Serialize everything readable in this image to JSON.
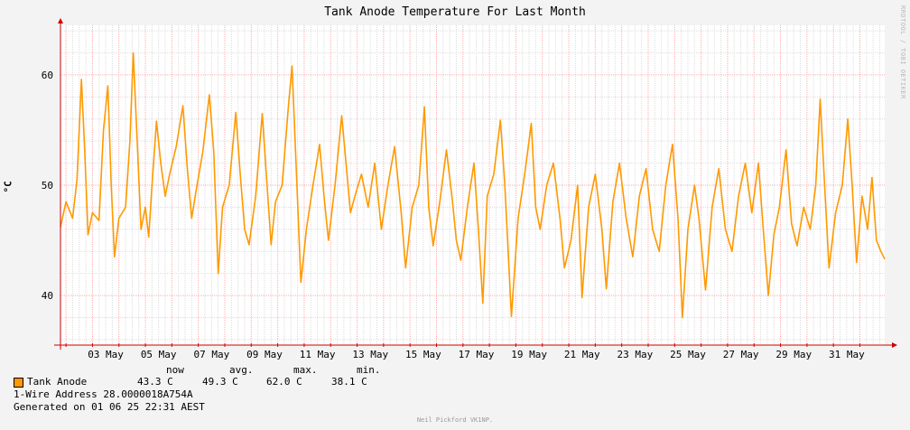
{
  "chart_data": {
    "type": "line",
    "title": "Tank Anode Temperature For Last Month",
    "ylabel": "°C",
    "ylim": [
      35.5,
      64.5
    ],
    "yticks": [
      40,
      50,
      60
    ],
    "xlim": [
      "2025-05-01 19:00",
      "2025-06-01 22:31"
    ],
    "xticks": [
      "03 May",
      "05 May",
      "07 May",
      "09 May",
      "11 May",
      "13 May",
      "15 May",
      "17 May",
      "19 May",
      "21 May",
      "23 May",
      "25 May",
      "27 May",
      "29 May",
      "31 May"
    ],
    "grid": true,
    "legend_position": "bottom-left",
    "series": [
      {
        "name": "Tank Anode",
        "color": "#ff9900",
        "points": [
          [
            "2025-05-01 19:00",
            46.2
          ],
          [
            "2025-05-02 00:00",
            48.5
          ],
          [
            "2025-05-02 06:00",
            47.0
          ],
          [
            "2025-05-02 10:00",
            50.5
          ],
          [
            "2025-05-02 14:00",
            59.6
          ],
          [
            "2025-05-02 17:00",
            53.0
          ],
          [
            "2025-05-02 20:00",
            45.5
          ],
          [
            "2025-05-03 00:00",
            47.5
          ],
          [
            "2025-05-03 06:00",
            46.8
          ],
          [
            "2025-05-03 10:00",
            55.0
          ],
          [
            "2025-05-03 14:00",
            59.0
          ],
          [
            "2025-05-03 17:00",
            50.0
          ],
          [
            "2025-05-03 20:00",
            43.5
          ],
          [
            "2025-05-04 00:00",
            47.0
          ],
          [
            "2025-05-04 06:00",
            48.0
          ],
          [
            "2025-05-04 10:00",
            54.0
          ],
          [
            "2025-05-04 13:00",
            62.0
          ],
          [
            "2025-05-04 17:00",
            53.0
          ],
          [
            "2025-05-04 20:00",
            46.0
          ],
          [
            "2025-05-05 00:00",
            48.0
          ],
          [
            "2025-05-05 03:00",
            45.3
          ],
          [
            "2025-05-05 06:00",
            50.0
          ],
          [
            "2025-05-05 10:00",
            55.8
          ],
          [
            "2025-05-05 14:00",
            52.0
          ],
          [
            "2025-05-05 18:00",
            49.0
          ],
          [
            "2025-05-05 22:00",
            51.0
          ],
          [
            "2025-05-06 04:00",
            53.5
          ],
          [
            "2025-05-06 10:00",
            57.2
          ],
          [
            "2025-05-06 14:00",
            51.5
          ],
          [
            "2025-05-06 18:00",
            47.0
          ],
          [
            "2025-05-06 22:00",
            49.5
          ],
          [
            "2025-05-07 04:00",
            53.0
          ],
          [
            "2025-05-07 10:00",
            58.2
          ],
          [
            "2025-05-07 14:00",
            53.0
          ],
          [
            "2025-05-07 18:00",
            42.0
          ],
          [
            "2025-05-07 22:00",
            48.0
          ],
          [
            "2025-05-08 04:00",
            50.0
          ],
          [
            "2025-05-08 10:00",
            56.6
          ],
          [
            "2025-05-08 14:00",
            51.0
          ],
          [
            "2025-05-08 18:00",
            46.0
          ],
          [
            "2025-05-08 22:00",
            44.6
          ],
          [
            "2025-05-09 04:00",
            49.0
          ],
          [
            "2025-05-09 10:00",
            56.5
          ],
          [
            "2025-05-09 14:00",
            50.5
          ],
          [
            "2025-05-09 18:00",
            44.6
          ],
          [
            "2025-05-09 22:00",
            48.5
          ],
          [
            "2025-05-10 04:00",
            50.0
          ],
          [
            "2025-05-10 10:00",
            57.5
          ],
          [
            "2025-05-10 13:00",
            60.8
          ],
          [
            "2025-05-10 17:00",
            51.0
          ],
          [
            "2025-05-10 21:00",
            41.2
          ],
          [
            "2025-05-11 02:00",
            46.0
          ],
          [
            "2025-05-11 08:00",
            50.0
          ],
          [
            "2025-05-11 14:00",
            53.7
          ],
          [
            "2025-05-11 18:00",
            49.0
          ],
          [
            "2025-05-11 22:00",
            45.0
          ],
          [
            "2025-05-12 04:00",
            50.0
          ],
          [
            "2025-05-12 10:00",
            56.3
          ],
          [
            "2025-05-12 14:00",
            52.0
          ],
          [
            "2025-05-12 18:00",
            47.5
          ],
          [
            "2025-05-12 22:00",
            49.0
          ],
          [
            "2025-05-13 04:00",
            51.0
          ],
          [
            "2025-05-13 10:00",
            48.0
          ],
          [
            "2025-05-13 16:00",
            52.0
          ],
          [
            "2025-05-13 22:00",
            46.0
          ],
          [
            "2025-05-14 04:00",
            50.0
          ],
          [
            "2025-05-14 10:00",
            53.5
          ],
          [
            "2025-05-14 16:00",
            47.5
          ],
          [
            "2025-05-14 20:00",
            42.5
          ],
          [
            "2025-05-15 02:00",
            48.0
          ],
          [
            "2025-05-15 08:00",
            50.0
          ],
          [
            "2025-05-15 13:00",
            57.1
          ],
          [
            "2025-05-15 17:00",
            48.0
          ],
          [
            "2025-05-15 21:00",
            44.5
          ],
          [
            "2025-05-16 03:00",
            48.5
          ],
          [
            "2025-05-16 09:00",
            53.2
          ],
          [
            "2025-05-16 14:00",
            49.0
          ],
          [
            "2025-05-16 18:00",
            45.0
          ],
          [
            "2025-05-16 22:00",
            43.2
          ],
          [
            "2025-05-17 04:00",
            48.0
          ],
          [
            "2025-05-17 10:00",
            52.0
          ],
          [
            "2025-05-17 14:00",
            46.0
          ],
          [
            "2025-05-17 18:00",
            39.3
          ],
          [
            "2025-05-17 22:00",
            49.0
          ],
          [
            "2025-05-18 04:00",
            51.0
          ],
          [
            "2025-05-18 10:00",
            55.9
          ],
          [
            "2025-05-18 14:00",
            50.0
          ],
          [
            "2025-05-18 20:00",
            38.1
          ],
          [
            "2025-05-19 02:00",
            47.0
          ],
          [
            "2025-05-19 08:00",
            51.0
          ],
          [
            "2025-05-19 14:00",
            55.6
          ],
          [
            "2025-05-19 18:00",
            48.0
          ],
          [
            "2025-05-19 22:00",
            46.0
          ],
          [
            "2025-05-20 04:00",
            50.0
          ],
          [
            "2025-05-20 10:00",
            52.0
          ],
          [
            "2025-05-20 16:00",
            47.0
          ],
          [
            "2025-05-20 20:00",
            42.5
          ],
          [
            "2025-05-21 02:00",
            45.0
          ],
          [
            "2025-05-21 08:00",
            50.0
          ],
          [
            "2025-05-21 12:00",
            39.8
          ],
          [
            "2025-05-21 18:00",
            48.0
          ],
          [
            "2025-05-22 00:00",
            51.0
          ],
          [
            "2025-05-22 06:00",
            46.0
          ],
          [
            "2025-05-22 10:00",
            40.6
          ],
          [
            "2025-05-22 16:00",
            48.5
          ],
          [
            "2025-05-22 22:00",
            52.0
          ],
          [
            "2025-05-23 04:00",
            47.0
          ],
          [
            "2025-05-23 10:00",
            43.5
          ],
          [
            "2025-05-23 16:00",
            49.0
          ],
          [
            "2025-05-23 22:00",
            51.5
          ],
          [
            "2025-05-24 04:00",
            46.0
          ],
          [
            "2025-05-24 10:00",
            44.0
          ],
          [
            "2025-05-24 16:00",
            50.0
          ],
          [
            "2025-05-24 22:00",
            53.7
          ],
          [
            "2025-05-25 03:00",
            47.0
          ],
          [
            "2025-05-25 07:00",
            38.0
          ],
          [
            "2025-05-25 12:00",
            46.0
          ],
          [
            "2025-05-25 18:00",
            50.0
          ],
          [
            "2025-05-25 22:00",
            47.0
          ],
          [
            "2025-05-26 04:00",
            40.5
          ],
          [
            "2025-05-26 10:00",
            48.0
          ],
          [
            "2025-05-26 16:00",
            51.5
          ],
          [
            "2025-05-26 22:00",
            46.0
          ],
          [
            "2025-05-27 04:00",
            44.0
          ],
          [
            "2025-05-27 10:00",
            49.0
          ],
          [
            "2025-05-27 16:00",
            52.0
          ],
          [
            "2025-05-27 22:00",
            47.5
          ],
          [
            "2025-05-28 04:00",
            52.0
          ],
          [
            "2025-05-28 08:00",
            46.5
          ],
          [
            "2025-05-28 13:00",
            40.0
          ],
          [
            "2025-05-28 18:00",
            45.5
          ],
          [
            "2025-05-28 23:00",
            48.0
          ],
          [
            "2025-05-29 05:00",
            53.2
          ],
          [
            "2025-05-29 10:00",
            46.5
          ],
          [
            "2025-05-29 15:00",
            44.5
          ],
          [
            "2025-05-29 21:00",
            48.0
          ],
          [
            "2025-05-30 03:00",
            46.0
          ],
          [
            "2025-05-30 08:00",
            50.0
          ],
          [
            "2025-05-30 12:00",
            57.8
          ],
          [
            "2025-05-30 16:00",
            50.0
          ],
          [
            "2025-05-30 20:00",
            42.5
          ],
          [
            "2025-05-31 02:00",
            47.5
          ],
          [
            "2025-05-31 08:00",
            50.0
          ],
          [
            "2025-05-31 13:00",
            56.0
          ],
          [
            "2025-05-31 17:00",
            50.0
          ],
          [
            "2025-05-31 21:00",
            43.0
          ],
          [
            "2025-06-01 02:00",
            49.0
          ],
          [
            "2025-06-01 07:00",
            46.0
          ],
          [
            "2025-06-01 11:00",
            50.7
          ],
          [
            "2025-06-01 15:00",
            45.0
          ],
          [
            "2025-06-01 19:00",
            44.0
          ],
          [
            "2025-06-01 22:31",
            43.3
          ]
        ]
      }
    ]
  },
  "legend": {
    "headers": {
      "now": "now",
      "avg": "avg.",
      "max": "max.",
      "min": "min."
    },
    "series_label": "Tank Anode",
    "now": "43.3 C",
    "avg": "49.3 C",
    "max": "62.0 C",
    "min": "38.1 C",
    "address_line": "1-Wire Address 28.0000018A754A",
    "generated_line": "Generated on 01 06 25 22:31 AEST"
  },
  "watermark": "RRDTOOL / TOBI OETIKER",
  "credit": "Neil Pickford VK1NP.",
  "colors": {
    "background": "#f3f3f3",
    "plot_background": "#ffffff",
    "grid_major": "#ffaaaa",
    "grid_minor": "#dddddd",
    "axis": "#cc0000",
    "series": "#ff9900"
  }
}
